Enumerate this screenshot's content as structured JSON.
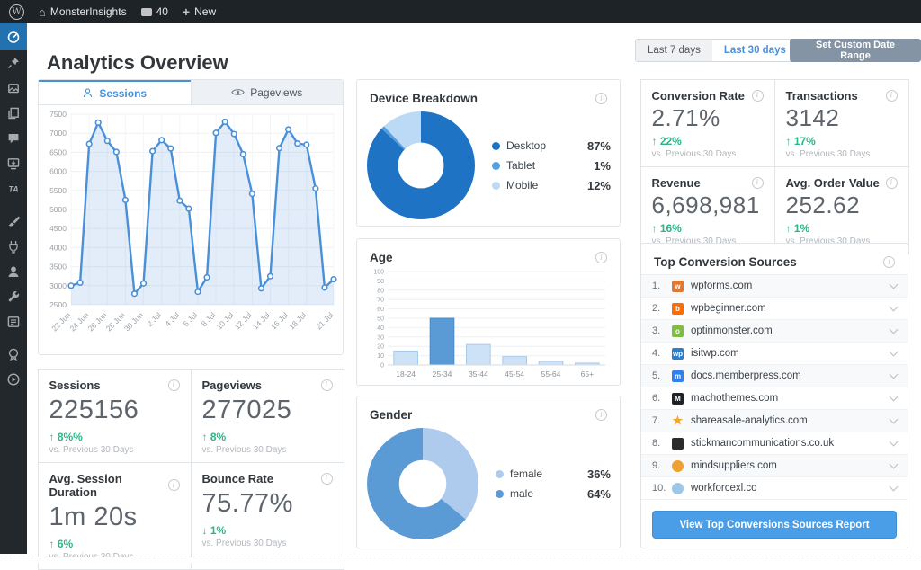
{
  "admin_bar": {
    "site_name": "MonsterInsights",
    "comment_count": "40",
    "new_label": "New"
  },
  "sidebar": {
    "items": [
      {
        "name": "monsterinsights-dashboard",
        "icon": "gauge-icon",
        "active": true
      },
      {
        "name": "posts",
        "icon": "pin-icon",
        "active": false
      },
      {
        "name": "media",
        "icon": "media-icon",
        "active": false
      },
      {
        "name": "pages",
        "icon": "pages-icon",
        "active": false
      },
      {
        "name": "comments",
        "icon": "comment-icon",
        "active": false
      },
      {
        "name": "downloads",
        "icon": "download-monitor-icon",
        "active": false
      },
      {
        "name": "ta-plugin",
        "icon": "ta-icon",
        "active": false
      },
      {
        "name": "appearance",
        "icon": "brush-icon",
        "active": false,
        "gap": true
      },
      {
        "name": "plugins",
        "icon": "plug-icon",
        "active": false
      },
      {
        "name": "users",
        "icon": "user-icon",
        "active": false
      },
      {
        "name": "tools",
        "icon": "wrench-icon",
        "active": false
      },
      {
        "name": "settings",
        "icon": "settings-icon",
        "active": false
      },
      {
        "name": "seal",
        "icon": "badge-icon",
        "active": false,
        "gap": true
      },
      {
        "name": "video",
        "icon": "play-icon",
        "active": false
      }
    ]
  },
  "header": {
    "title": "Analytics Overview",
    "range_7_label": "Last 7 days",
    "range_30_label": "Last 30 days",
    "custom_range_label": "Set Custom Date Range"
  },
  "tabs": {
    "sessions": "Sessions",
    "pageviews": "Pageviews"
  },
  "compare_label": "vs. Previous 30 Days",
  "colors": {
    "accent_blue": "#4a90d9",
    "green": "#2cb489",
    "active_sidebar": "#2271b1"
  },
  "chart_data": [
    {
      "type": "area",
      "title": "Sessions over time",
      "x": [
        "22 Jun",
        "23 Jun",
        "24 Jun",
        "25 Jun",
        "26 Jun",
        "27 Jun",
        "28 Jun",
        "29 Jun",
        "30 Jun",
        "1 Jul",
        "2 Jul",
        "3 Jul",
        "4 Jul",
        "5 Jul",
        "6 Jul",
        "7 Jul",
        "8 Jul",
        "9 Jul",
        "10 Jul",
        "11 Jul",
        "12 Jul",
        "13 Jul",
        "14 Jul",
        "15 Jul",
        "16 Jul",
        "17 Jul",
        "18 Jul",
        "19 Jul",
        "20 Jul",
        "21 Jul"
      ],
      "values": [
        3000,
        3080,
        6720,
        7280,
        6800,
        6510,
        5250,
        2790,
        3060,
        6530,
        6820,
        6600,
        5230,
        5020,
        2840,
        3220,
        7010,
        7300,
        6980,
        6450,
        5410,
        2930,
        3250,
        6610,
        7100,
        6730,
        6700,
        5550,
        2950,
        3170
      ],
      "ylim": [
        2500,
        7500
      ],
      "ytick_step": 500,
      "x_tick_indices": [
        0,
        2,
        4,
        6,
        8,
        10,
        12,
        14,
        16,
        18,
        20,
        22,
        24,
        26,
        29
      ],
      "x_tick_labels": [
        "22 Jun",
        "24 Jun",
        "26 Jun",
        "28 Jun",
        "30 Jun",
        "2 Jul",
        "4 Jul",
        "6 Jul",
        "8 Jul",
        "10 Jul",
        "12 Jul",
        "14 Jul",
        "16 Jul",
        "18 Jul",
        "21 Jul"
      ],
      "line_color": "#4a90d9",
      "fill_color": "rgba(74,144,217,0.16)",
      "grid": true
    },
    {
      "type": "pie",
      "title": "Device Breakdown",
      "labels": [
        "Desktop",
        "Tablet",
        "Mobile"
      ],
      "values": [
        87,
        1,
        12
      ],
      "pct_labels": [
        "87%",
        "1%",
        "12%"
      ],
      "colors": [
        "#1e73c4",
        "#54a0e0",
        "#bcdaf5"
      ]
    },
    {
      "type": "bar",
      "title": "Age",
      "categories": [
        "18-24",
        "25-34",
        "35-44",
        "45-54",
        "55-64",
        "65+"
      ],
      "values": [
        15,
        50,
        22,
        9,
        4,
        2
      ],
      "ylim": [
        0,
        100
      ],
      "ytick_step": 10,
      "bar_color": "#cde2f7",
      "bar_border": "#a9c9ea",
      "highlight_index": 1,
      "highlight_color": "#5b9bd5",
      "grid": true
    },
    {
      "type": "pie",
      "title": "Gender",
      "labels": [
        "female",
        "male"
      ],
      "values": [
        36,
        64
      ],
      "pct_labels": [
        "36%",
        "64%"
      ],
      "colors": [
        "#aecbee",
        "#5b9bd5"
      ]
    }
  ],
  "stats_left": [
    {
      "label": "Sessions",
      "value": "225156",
      "arrow": "↑",
      "change": "8%%",
      "direction": "up"
    },
    {
      "label": "Pageviews",
      "value": "277025",
      "arrow": "↑",
      "change": "8%",
      "direction": "up"
    },
    {
      "label": "Avg. Session Duration",
      "value": "1m 20s",
      "arrow": "↑",
      "change": "6%",
      "direction": "up"
    },
    {
      "label": "Bounce Rate",
      "value": "75.77%",
      "arrow": "↓",
      "change": "1%",
      "direction": "down"
    }
  ],
  "stats_right": [
    {
      "label": "Conversion Rate",
      "value": "2.71%",
      "arrow": "↑",
      "change": "22%",
      "direction": "up"
    },
    {
      "label": "Transactions",
      "value": "3142",
      "arrow": "↑",
      "change": "17%",
      "direction": "up"
    },
    {
      "label": "Revenue",
      "value": "6,698,981",
      "arrow": "↑",
      "change": "16%",
      "direction": "up"
    },
    {
      "label": "Avg. Order Value",
      "value": "252.62",
      "arrow": "↑",
      "change": "1%",
      "direction": "up"
    }
  ],
  "top_sources": {
    "title": "Top Conversion Sources",
    "button_label": "View Top Conversions Sources Report",
    "items": [
      {
        "rank": "1",
        "domain": "wpforms.com",
        "favicon_color": "#e27730",
        "shape": "square",
        "initial": "w"
      },
      {
        "rank": "2",
        "domain": "wpbeginner.com",
        "favicon_color": "#ff6d00",
        "shape": "square",
        "initial": "b"
      },
      {
        "rank": "3",
        "domain": "optinmonster.com",
        "favicon_color": "#7fbc43",
        "shape": "square",
        "initial": "o"
      },
      {
        "rank": "4",
        "domain": "isitwp.com",
        "favicon_color": "#2d7ecd",
        "shape": "square",
        "initial": "wp"
      },
      {
        "rank": "5",
        "domain": "docs.memberpress.com",
        "favicon_color": "#2f80ed",
        "shape": "square",
        "initial": "m"
      },
      {
        "rank": "6",
        "domain": "machothemes.com",
        "favicon_color": "#1d2327",
        "shape": "square",
        "initial": "M"
      },
      {
        "rank": "7",
        "domain": "shareasale-analytics.com",
        "favicon_color": "#f5a623",
        "shape": "star",
        "initial": "★"
      },
      {
        "rank": "8",
        "domain": "stickmancommunications.co.uk",
        "favicon_color": "#2b2b2b",
        "shape": "square",
        "initial": ""
      },
      {
        "rank": "9",
        "domain": "mindsuppliers.com",
        "favicon_color": "#f0a030",
        "shape": "circle",
        "initial": ""
      },
      {
        "rank": "10",
        "domain": "workforcexl.co",
        "favicon_color": "#9cc7e8",
        "shape": "circle",
        "initial": ""
      }
    ]
  }
}
